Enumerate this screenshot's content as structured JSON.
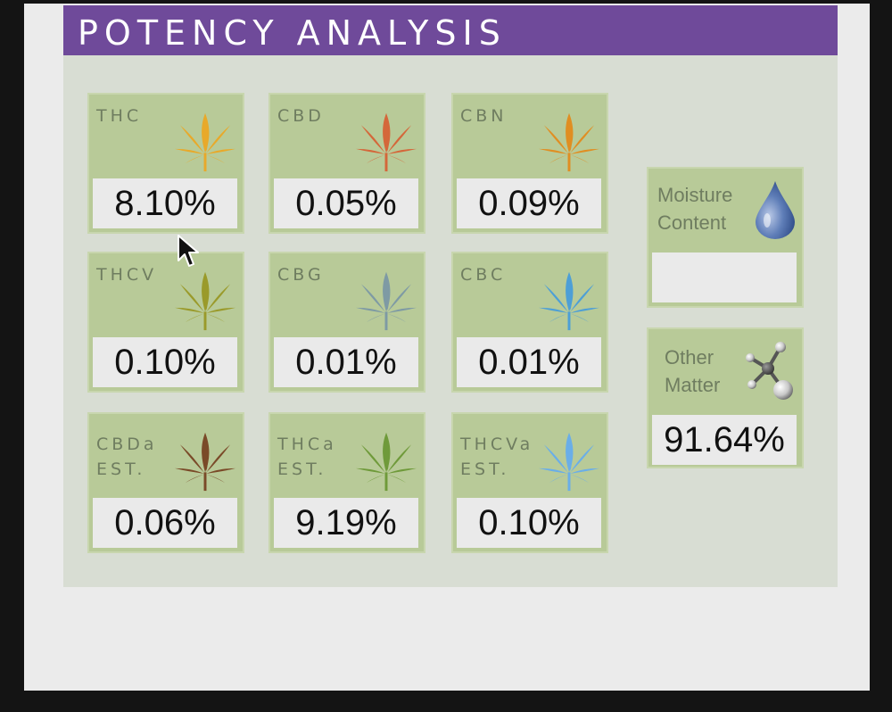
{
  "header": {
    "title": "POTENCY ANALYSIS"
  },
  "cannabinoids": [
    {
      "label": "THC",
      "value": "8.10%",
      "leaf_color": "#e8a92a"
    },
    {
      "label": "CBD",
      "value": "0.05%",
      "leaf_color": "#d4673a"
    },
    {
      "label": "CBN",
      "value": "0.09%",
      "leaf_color": "#e08e22"
    },
    {
      "label": "THCV",
      "value": "0.10%",
      "leaf_color": "#9a9a2a"
    },
    {
      "label": "CBG",
      "value": "0.01%",
      "leaf_color": "#7e9aa4"
    },
    {
      "label": "CBC",
      "value": "0.01%",
      "leaf_color": "#4d9fd6"
    },
    {
      "label": "CBDa\nEST.",
      "value": "0.06%",
      "leaf_color": "#7a4a28"
    },
    {
      "label": "THCa\nEST.",
      "value": "9.19%",
      "leaf_color": "#6f9a3a"
    },
    {
      "label": "THCVa\nEST.",
      "value": "0.10%",
      "leaf_color": "#6aaee8"
    }
  ],
  "moisture": {
    "label": "Moisture\nContent",
    "value": ""
  },
  "other": {
    "label": "Other\nMatter",
    "value": "91.64%"
  }
}
